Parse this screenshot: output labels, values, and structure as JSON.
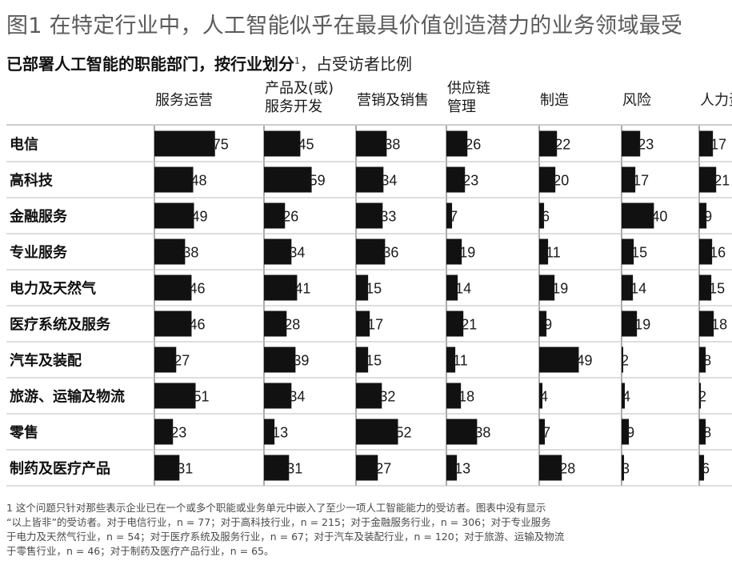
{
  "title": "图1 在特定行业中，人工智能似乎在最具价值创造潜力的业务领域最受",
  "subtitle": {
    "bold": "已部署人工智能的职能部门，按行业划分",
    "sup": "1",
    "rest": "，占受访者比例"
  },
  "chart_data": {
    "type": "bar",
    "columns": [
      "服务运营",
      "产品及(或)\n服务开发",
      "营销及销售",
      "供应链\n管理",
      "制造",
      "风险",
      "人力资"
    ],
    "categories": [
      "电信",
      "高科技",
      "金融服务",
      "专业服务",
      "电力及天然气",
      "医疗系统及服务",
      "汽车及装配",
      "旅游、运输及物流",
      "零售",
      "制药及医疗产品"
    ],
    "values": [
      [
        75,
        45,
        38,
        26,
        22,
        23,
        17
      ],
      [
        48,
        59,
        34,
        23,
        20,
        17,
        21
      ],
      [
        49,
        26,
        33,
        7,
        6,
        40,
        9
      ],
      [
        38,
        34,
        36,
        19,
        11,
        15,
        16
      ],
      [
        46,
        41,
        15,
        14,
        19,
        14,
        15
      ],
      [
        46,
        28,
        17,
        21,
        9,
        19,
        18
      ],
      [
        27,
        39,
        15,
        11,
        49,
        2,
        8
      ],
      [
        51,
        34,
        32,
        18,
        4,
        4,
        2
      ],
      [
        23,
        13,
        52,
        38,
        7,
        9,
        8
      ],
      [
        31,
        31,
        27,
        13,
        28,
        3,
        6
      ]
    ],
    "bar_color": "#111111"
  },
  "footnote": [
    "1 这个问题只针对那些表示企业已在一个或多个职能或业务单元中嵌入了至少一项人工智能能力的受访者。图表中没有显示",
    "“以上皆非”的受访者。对于电信行业，n = 77；对于高科技行业，n = 215；对于金融服务行业，n = 306；对于专业服务",
    "于电力及天然气行业，n = 54；对于医疗系统及服务行业，n = 67；对于汽车及装配行业，n = 120；对于旅游、运输及物流",
    "于零售行业，n = 46；对于制药及医疗产品行业，n = 65。"
  ]
}
